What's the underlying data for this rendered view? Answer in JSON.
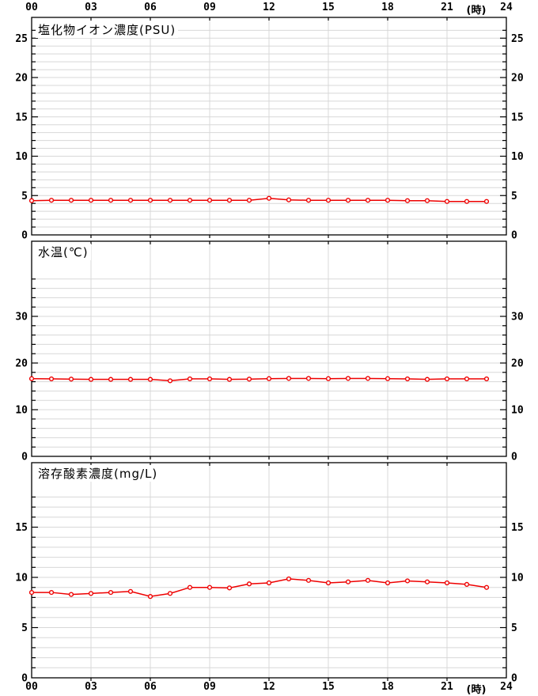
{
  "page": {
    "background": "#ffffff"
  },
  "colors": {
    "series_line": "#ee0000",
    "marker_fill": "#ffffff",
    "gridline": "#d8d8d8",
    "axis": "#000000",
    "text": "#000000"
  },
  "time_axis": {
    "tick_labels": [
      "00",
      "03",
      "06",
      "09",
      "12",
      "15",
      "18",
      "21",
      "24"
    ],
    "tick_hours": [
      0,
      3,
      6,
      9,
      12,
      15,
      18,
      21,
      24
    ],
    "unit_label": "(時)",
    "hours_span": 24
  },
  "chart_data": [
    {
      "type": "line",
      "title": "塩化物イオン濃度(PSU)",
      "xlabel": "(時)",
      "ylabel": "PSU",
      "x_hours": [
        0,
        1,
        2,
        3,
        4,
        5,
        6,
        7,
        8,
        9,
        10,
        11,
        12,
        13,
        14,
        15,
        16,
        17,
        18,
        19,
        20,
        21,
        22,
        23
      ],
      "values": [
        4.35,
        4.4,
        4.4,
        4.4,
        4.4,
        4.4,
        4.4,
        4.4,
        4.4,
        4.4,
        4.4,
        4.4,
        4.65,
        4.45,
        4.4,
        4.4,
        4.4,
        4.4,
        4.4,
        4.35,
        4.35,
        4.25,
        4.25,
        4.25
      ],
      "ylim": [
        0,
        27.64
      ],
      "ytick_step": 1,
      "ytick_max": 26,
      "ylabel_step": 5,
      "ylabel_max": 25,
      "grid": true,
      "legend": "none"
    },
    {
      "type": "line",
      "title": "水温(℃)",
      "xlabel": "(時)",
      "ylabel": "℃",
      "x_hours": [
        0,
        1,
        2,
        3,
        4,
        5,
        6,
        7,
        8,
        9,
        10,
        11,
        12,
        13,
        14,
        15,
        16,
        17,
        18,
        19,
        20,
        21,
        22,
        23
      ],
      "values": [
        16.65,
        16.6,
        16.55,
        16.5,
        16.5,
        16.5,
        16.5,
        16.2,
        16.6,
        16.6,
        16.5,
        16.55,
        16.65,
        16.7,
        16.7,
        16.65,
        16.7,
        16.7,
        16.65,
        16.6,
        16.5,
        16.6,
        16.6,
        16.6
      ],
      "ylim": [
        0,
        46.1
      ],
      "ytick_step": 2,
      "ytick_max": 38,
      "ylabel_step": 10,
      "ylabel_max": 30,
      "grid": true,
      "legend": "none"
    },
    {
      "type": "line",
      "title": "溶存酸素濃度(mg/L)",
      "xlabel": "(時)",
      "ylabel": "mg/L",
      "x_hours": [
        0,
        1,
        2,
        3,
        4,
        5,
        6,
        7,
        8,
        9,
        10,
        11,
        12,
        13,
        14,
        15,
        16,
        17,
        18,
        19,
        20,
        21,
        22,
        23
      ],
      "values": [
        8.5,
        8.5,
        8.3,
        8.4,
        8.5,
        8.6,
        8.1,
        8.4,
        9.0,
        9.0,
        8.95,
        9.35,
        9.45,
        9.85,
        9.7,
        9.45,
        9.55,
        9.7,
        9.45,
        9.65,
        9.55,
        9.45,
        9.3,
        9.0
      ],
      "ylim": [
        0,
        21.42
      ],
      "ytick_step": 1,
      "ytick_max": 18,
      "ylabel_step": 5,
      "ylabel_max": 15,
      "grid": true,
      "legend": "none"
    }
  ]
}
